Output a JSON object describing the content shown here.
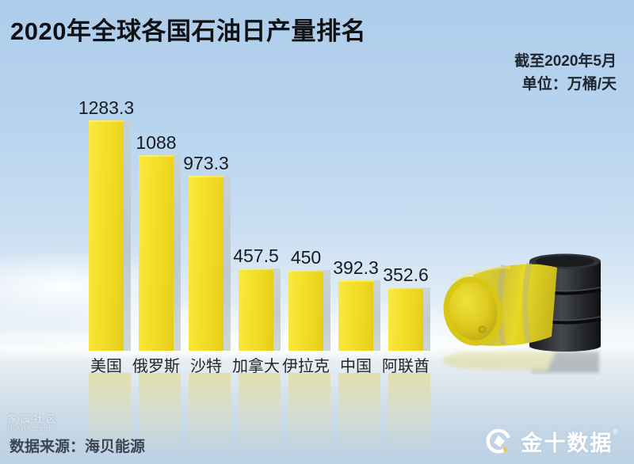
{
  "title": "2020年全球各国石油日产量排名",
  "meta": {
    "as_of": "截至2020年5月",
    "unit": "单位：万桶/天"
  },
  "chart_data": {
    "type": "bar",
    "categories": [
      "美国",
      "俄罗斯",
      "沙特",
      "加拿大",
      "伊拉克",
      "中国",
      "阿联酋"
    ],
    "values": [
      1283.3,
      1088,
      973.3,
      457.5,
      450,
      392.3,
      352.6
    ],
    "value_labels": [
      "1283.3",
      "1088",
      "973.3",
      "457.5",
      "450",
      "392.3",
      "352.6"
    ],
    "title": "2020年全球各国石油日产量排名",
    "xlabel": "",
    "ylabel": "万桶/天",
    "ylim": [
      0,
      1350
    ],
    "grid": false,
    "legend_position": "none",
    "bar_color": "#f2dc20"
  },
  "source": {
    "label": "数据来源：海贝能源"
  },
  "watermark": {
    "line1": "家园社区",
    "line2": "iPARK.com"
  },
  "logo": {
    "name": "金十数据",
    "registered": "®"
  },
  "colors": {
    "bar": "#f2dc20",
    "bar_side": "#bcc5c8",
    "title_text": "#101114",
    "value_text": "#171c22",
    "source_text": "#3d4752",
    "logo_text": "#ffffff",
    "logo_accent": "#f3c63f",
    "sky_top": "#aecdeb",
    "floor_bottom": "#bdd2e5"
  }
}
